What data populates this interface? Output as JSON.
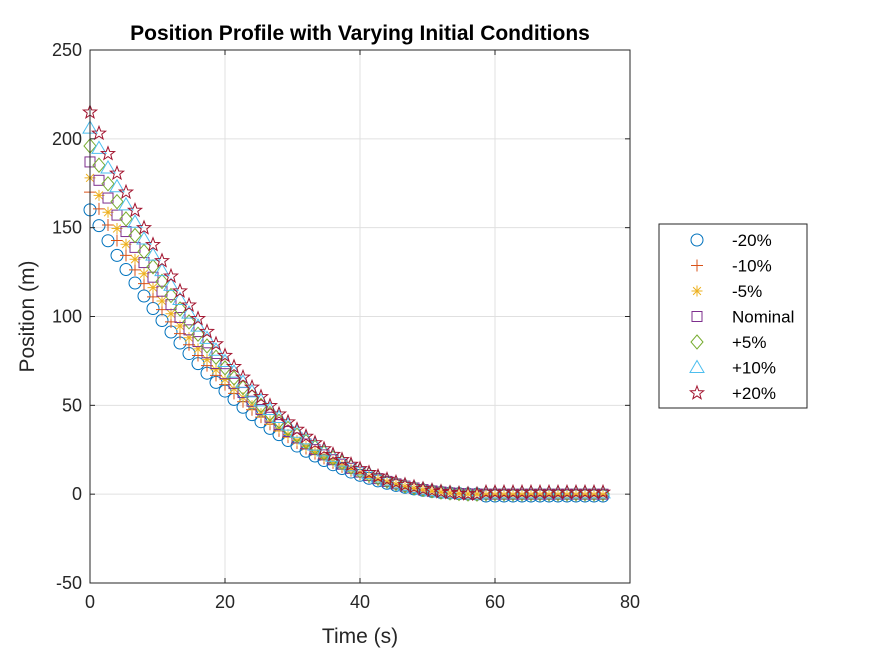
{
  "chart_data": {
    "type": "scatter",
    "title": "Position Profile with Varying Initial Conditions",
    "xlabel": "Time (s)",
    "ylabel": "Position (m)",
    "xlim": [
      0,
      80
    ],
    "ylim": [
      -50,
      250
    ],
    "xticks": [
      "0",
      "20",
      "40",
      "60",
      "80"
    ],
    "yticks": [
      "-50",
      "0",
      "50",
      "100",
      "150",
      "200",
      "250"
    ],
    "xtick_values": [
      0,
      20,
      40,
      60,
      80
    ],
    "ytick_values": [
      -50,
      0,
      50,
      100,
      150,
      200,
      250
    ],
    "grid": true,
    "legend_position": "outside-right",
    "time_points": [
      0,
      1.333,
      2.667,
      4,
      5.333,
      6.667,
      8,
      9.333,
      10.667,
      12,
      13.333,
      14.667,
      16,
      17.333,
      18.667,
      20,
      21.333,
      22.667,
      24,
      25.333,
      26.667,
      28,
      29.333,
      30.667,
      32,
      33.333,
      34.667,
      36,
      37.333,
      38.667,
      40,
      41.333,
      42.667,
      44,
      45.333,
      46.667,
      48,
      49.333,
      50.667,
      52,
      53.333,
      54.667,
      56,
      57.333,
      58.667,
      60,
      61.333,
      62.667,
      64,
      65.333,
      66.667,
      68,
      69.333,
      70.667,
      72,
      73.333,
      74.667,
      76
    ],
    "series": [
      {
        "name": "-20%",
        "marker": "circle",
        "color": "#0072BD",
        "initial": 160,
        "final": 0
      },
      {
        "name": "-10%",
        "marker": "plus",
        "color": "#D95319",
        "initial": 170,
        "final": 0
      },
      {
        "name": "-5%",
        "marker": "asterisk",
        "color": "#EDB120",
        "initial": 178,
        "final": 0
      },
      {
        "name": "Nominal",
        "marker": "square",
        "color": "#7E2F8E",
        "initial": 187,
        "final": 0
      },
      {
        "name": "+5%",
        "marker": "diamond",
        "color": "#77AC30",
        "initial": 196,
        "final": 0
      },
      {
        "name": "+10%",
        "marker": "triangle",
        "color": "#4DBEEE",
        "initial": 206,
        "final": 0
      },
      {
        "name": "+20%",
        "marker": "pentagram",
        "color": "#A2142F",
        "initial": 215,
        "final": 0
      }
    ]
  }
}
